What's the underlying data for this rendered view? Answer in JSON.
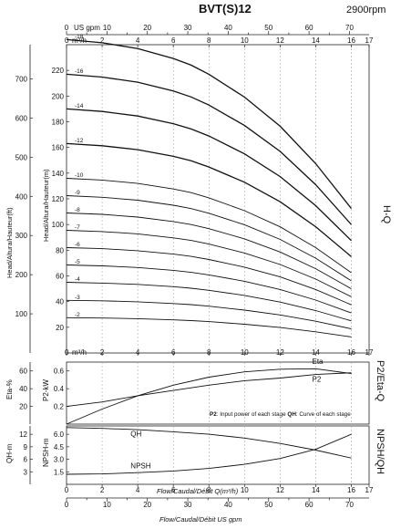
{
  "header": {
    "model": "BVT(S)12",
    "speed": "2900rpm"
  },
  "axes": {
    "usgpm_label": "US gpm",
    "m3h_label": "m³/h",
    "usgpm_ticks": [
      "0",
      "10",
      "20",
      "30",
      "40",
      "50",
      "60",
      "70"
    ],
    "m3h_ticks": [
      "0",
      "2",
      "4",
      "6",
      "8",
      "10",
      "12",
      "14",
      "16",
      "17"
    ],
    "head_m_label": "Head/Altura/Hauteur(m)",
    "head_ft_label": "Head/Altura/Hauteur(ft)",
    "head_m_ticks": [
      "20",
      "40",
      "60",
      "80",
      "100",
      "120",
      "140",
      "160",
      "180",
      "200",
      "220"
    ],
    "head_ft_ticks": [
      "100",
      "200",
      "300",
      "400",
      "500",
      "600",
      "700"
    ],
    "eta_label": "Eta-%",
    "eta_ticks": [
      "20",
      "40",
      "60"
    ],
    "p2_label": "P2-kW",
    "p2_ticks": [
      "0.2",
      "0.4",
      "0.6"
    ],
    "qh_m_label": "QH-m",
    "qh_m_ticks": [
      "3",
      "6",
      "9",
      "12"
    ],
    "npsh_label": "NPSH-m",
    "npsh_ticks": [
      "1.5",
      "3.0",
      "4.5",
      "6.0"
    ],
    "flow_label_1": "Flow/Caudal/Débit Q(m³/h)",
    "flow_label_2": "Flow/Caudal/Débit  US gpm"
  },
  "side_labels": {
    "hq": "H-Q",
    "p2eta": "P2/Eta-Q",
    "npshqh": "NPSH/QH"
  },
  "notes": {
    "p2_key": "P2",
    "p2_text": ": Input power of each stage  ",
    "qh_key": "QH",
    "qh_text": ": Curve of each stage"
  },
  "chart_data": [
    {
      "type": "line",
      "title": "H-Q",
      "xlabel": "Flow/Caudal/Débit Q(m³/h)",
      "ylabel": "Head/Altura/Hauteur(m)",
      "xlim": [
        0,
        17
      ],
      "ylim": [
        0,
        240
      ],
      "x": [
        0,
        2,
        4,
        6,
        7,
        8,
        10,
        12,
        14,
        16
      ],
      "series": [
        {
          "name": "-2",
          "values": [
            27.5,
            27.2,
            26.7,
            25.8,
            25.2,
            24.4,
            22.4,
            19.8,
            16.5,
            12.5
          ]
        },
        {
          "name": "-3",
          "values": [
            41,
            40.6,
            39.8,
            38.5,
            37.6,
            36.4,
            33.4,
            29.6,
            24.7,
            18.8
          ]
        },
        {
          "name": "-4",
          "values": [
            55,
            54.4,
            53.4,
            51.6,
            50.4,
            48.8,
            44.8,
            39.6,
            33,
            25
          ]
        },
        {
          "name": "-5",
          "values": [
            68.5,
            67.8,
            66.5,
            64.3,
            62.8,
            60.8,
            55.8,
            49.4,
            41.2,
            31.2
          ]
        },
        {
          "name": "-6",
          "values": [
            82,
            81.2,
            79.6,
            77,
            75.2,
            72.8,
            66.8,
            59.2,
            49.4,
            37.5
          ]
        },
        {
          "name": "-7",
          "values": [
            95.5,
            94.5,
            92.7,
            89.6,
            87.6,
            84.8,
            77.8,
            68.9,
            57.5,
            43.8
          ]
        },
        {
          "name": "-8",
          "values": [
            109,
            107.9,
            105.8,
            102.3,
            100,
            96.8,
            88.8,
            78.6,
            65.6,
            50
          ]
        },
        {
          "name": "-9",
          "values": [
            122.5,
            121.2,
            118.9,
            115,
            112.4,
            108.8,
            99.8,
            88.4,
            73.8,
            56.2
          ]
        },
        {
          "name": "-10",
          "values": [
            136,
            134.6,
            132,
            127.7,
            124.8,
            120.8,
            110.8,
            98.2,
            82,
            62.5
          ]
        },
        {
          "name": "-12",
          "values": [
            163,
            161.3,
            158.3,
            153.1,
            149.6,
            144.8,
            132.9,
            117.7,
            98.3,
            75
          ]
        },
        {
          "name": "-14",
          "values": [
            190,
            188,
            184.5,
            178.5,
            174.4,
            168.9,
            155,
            137.3,
            114.7,
            87.5
          ]
        },
        {
          "name": "-16",
          "values": [
            217,
            214.8,
            210.8,
            203.9,
            199.3,
            193,
            177.1,
            156.9,
            131,
            100
          ]
        },
        {
          "name": "-18",
          "values": [
            244,
            241.5,
            237,
            229.3,
            224.1,
            217,
            199.2,
            176.5,
            147.4,
            112.5
          ]
        }
      ]
    },
    {
      "type": "line",
      "title": "P2/Eta-Q",
      "xlim": [
        0,
        17
      ],
      "ylabel_left": "Eta-%",
      "ylabel_right_inner": "P2-kW",
      "x": [
        0,
        2,
        4,
        6,
        8,
        10,
        12,
        14,
        16
      ],
      "series": [
        {
          "name": "Eta",
          "unit": "%",
          "values": [
            0,
            17,
            32,
            44,
            53,
            59,
            62,
            62.5,
            57
          ]
        },
        {
          "name": "P2",
          "unit": "kW",
          "values": [
            0.2,
            0.25,
            0.32,
            0.38,
            0.44,
            0.49,
            0.52,
            0.56,
            0.58
          ]
        }
      ]
    },
    {
      "type": "line",
      "title": "NPSH/QH",
      "xlim": [
        0,
        17
      ],
      "ylabel_left": "QH-m",
      "ylabel_right_inner": "NPSH-m",
      "x": [
        0,
        2,
        4,
        6,
        8,
        10,
        12,
        14,
        16
      ],
      "series": [
        {
          "name": "QH",
          "unit": "m",
          "values": [
            13.6,
            13.4,
            13.1,
            12.6,
            12.0,
            11.1,
            9.8,
            8.2,
            6.3
          ]
        },
        {
          "name": "NPSH",
          "unit": "m",
          "values": [
            1.2,
            1.25,
            1.4,
            1.6,
            1.9,
            2.4,
            3.1,
            4.2,
            6.0
          ]
        }
      ]
    }
  ]
}
